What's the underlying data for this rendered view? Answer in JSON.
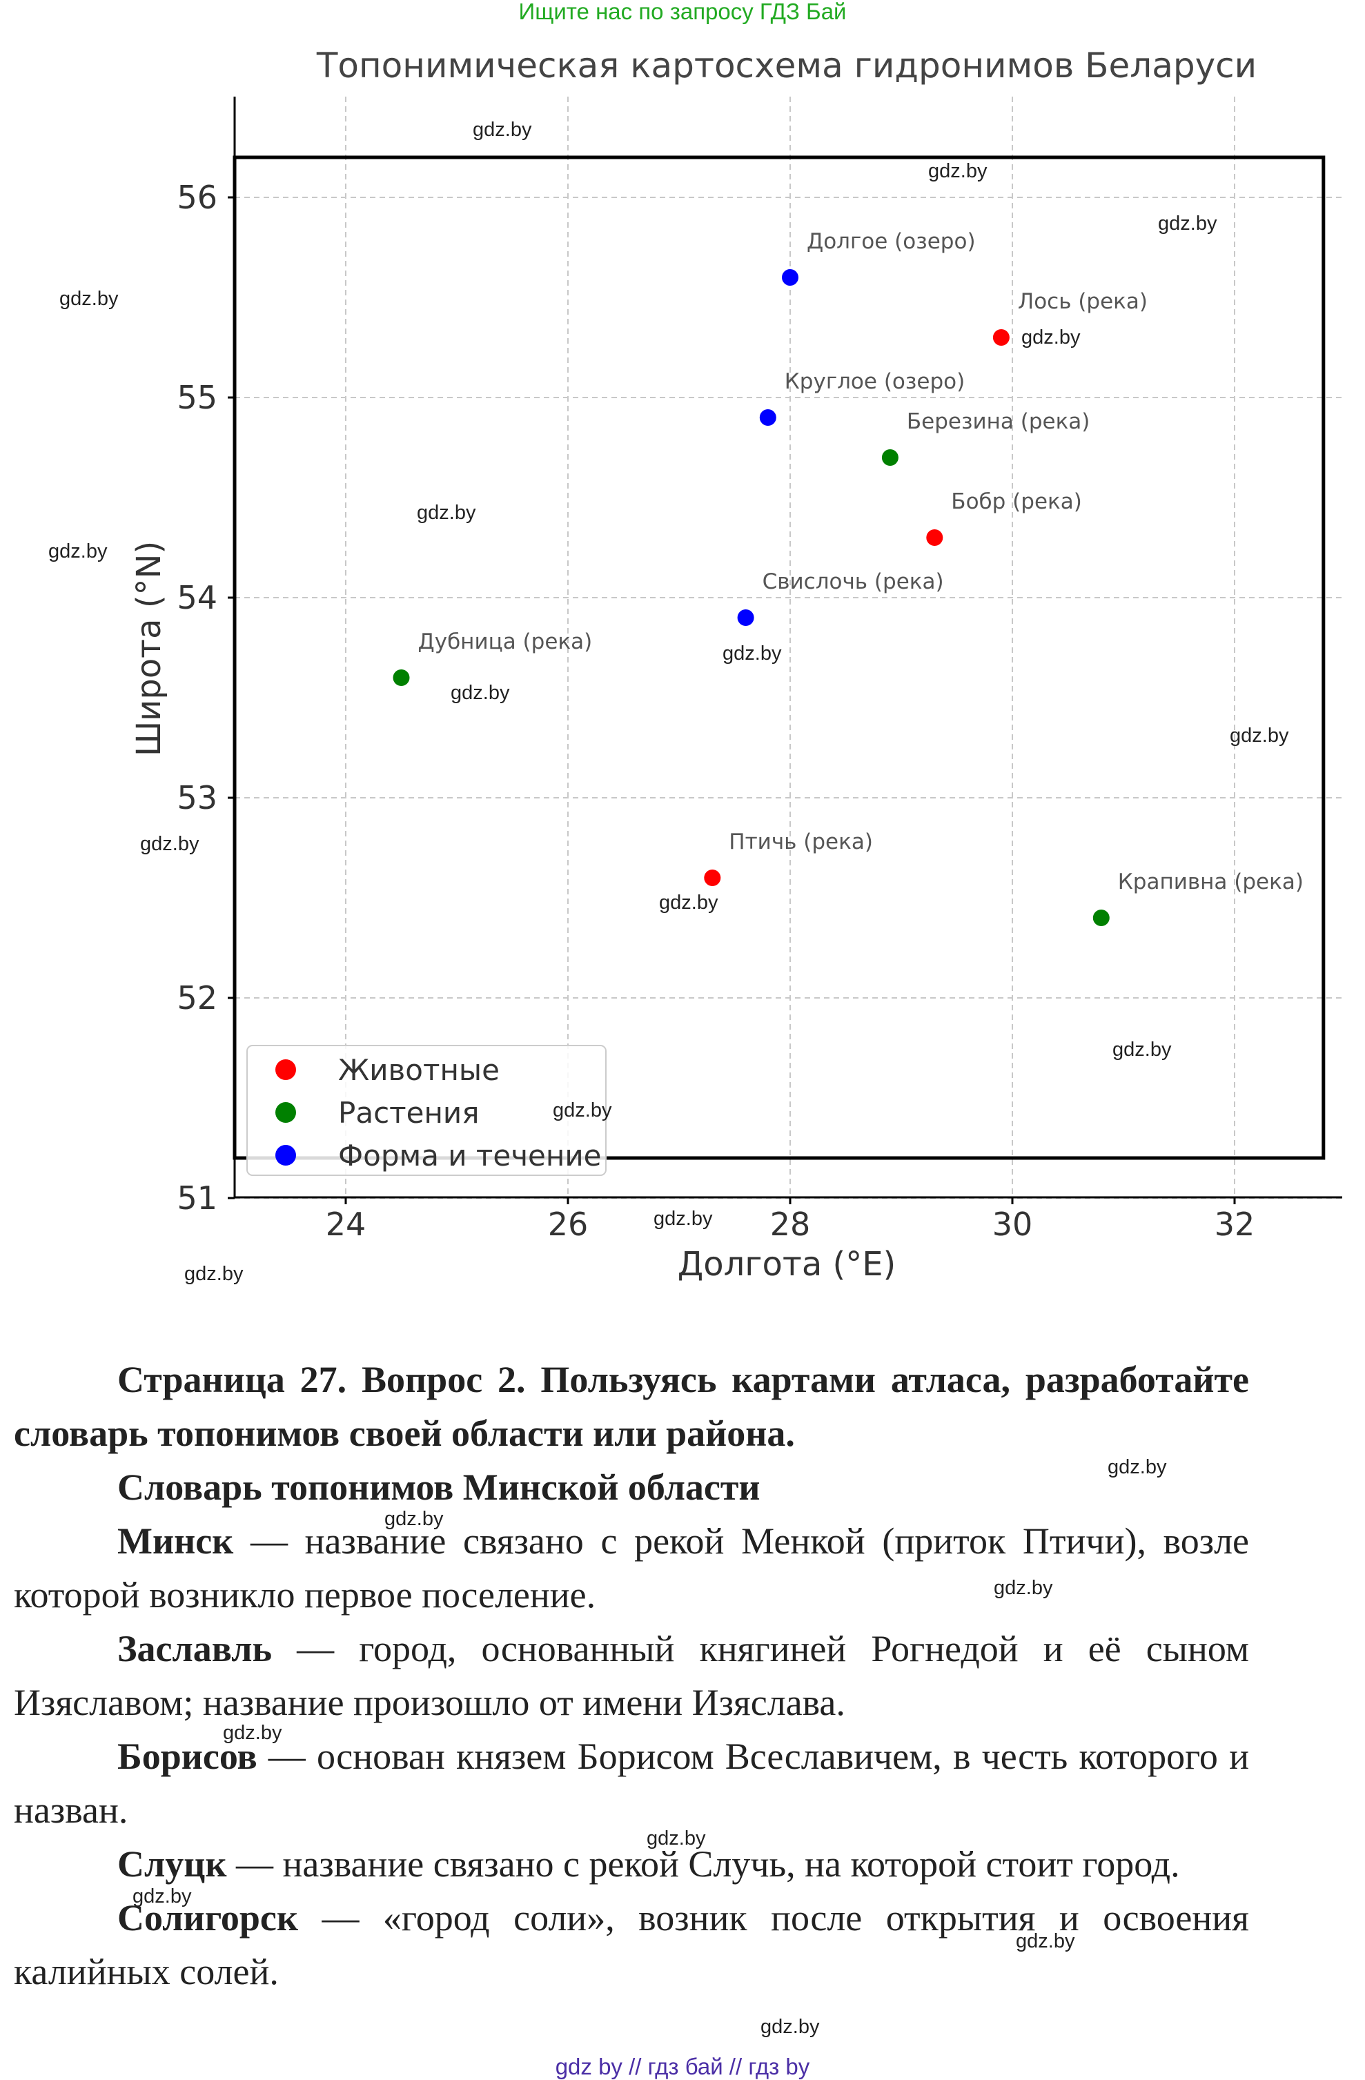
{
  "banner": "Ищите нас по запросу ГДЗ Бай",
  "chart_data": {
    "type": "scatter",
    "title": "Топонимическая картосхема гидронимов Беларуси",
    "xlabel": "Долгота (°E)",
    "ylabel": "Широта (°N)",
    "xlim": [
      23,
      33
    ],
    "ylim": [
      51,
      56.5
    ],
    "xticks": [
      24,
      26,
      28,
      30,
      32
    ],
    "yticks": [
      51,
      52,
      53,
      54,
      55,
      56
    ],
    "grid": true,
    "region_box": {
      "x": [
        23,
        32.8
      ],
      "y": [
        51.2,
        56.2
      ]
    },
    "categories": [
      {
        "name": "Животные",
        "color": "#ff0000"
      },
      {
        "name": "Растения",
        "color": "#008000"
      },
      {
        "name": "Форма и течение",
        "color": "#0000ff"
      }
    ],
    "points": [
      {
        "label": "Долгое (озеро)",
        "x": 28.0,
        "y": 55.6,
        "category": 2
      },
      {
        "label": "Лось (река)",
        "x": 29.9,
        "y": 55.3,
        "category": 0
      },
      {
        "label": "Круглое (озеро)",
        "x": 27.8,
        "y": 54.9,
        "category": 2
      },
      {
        "label": "Березина (река)",
        "x": 28.9,
        "y": 54.7,
        "category": 1
      },
      {
        "label": "Бобр (река)",
        "x": 29.3,
        "y": 54.3,
        "category": 0
      },
      {
        "label": "Свислочь (река)",
        "x": 27.6,
        "y": 53.9,
        "category": 2
      },
      {
        "label": "Дубница (река)",
        "x": 24.5,
        "y": 53.6,
        "category": 1
      },
      {
        "label": "Птичь (река)",
        "x": 27.3,
        "y": 52.6,
        "category": 0
      },
      {
        "label": "Крапивна (река)",
        "x": 30.8,
        "y": 52.4,
        "category": 1
      }
    ],
    "legend_position": "lower-left"
  },
  "watermark": "gdz.by",
  "question": {
    "heading": "Страница 27. Вопрос 2. Пользуясь картами атласа, разработайте словарь топонимов своей области или района.",
    "subheading": "Словарь топонимов Минской области"
  },
  "entries": [
    {
      "term": "Минск",
      "definition": " — название связано с рекой Менкой (приток Птичи), возле которой возникло первое поселение."
    },
    {
      "term": "Заславль",
      "definition": " — город, основанный княгиней Рогнедой и её сыном Изяславом; название произошло от имени Изяслава."
    },
    {
      "term": "Борисов",
      "definition": " — основан князем Борисом Всеславичем, в честь которого и назван."
    },
    {
      "term": "Слуцк",
      "definition": " — название связано с рекой Случь, на которой стоит город."
    },
    {
      "term": "Солигорск",
      "definition": " — «город соли», возник после открытия и освоения калийных солей."
    }
  ],
  "footer": "gdz by  //  гдз бай  //  гдз by"
}
